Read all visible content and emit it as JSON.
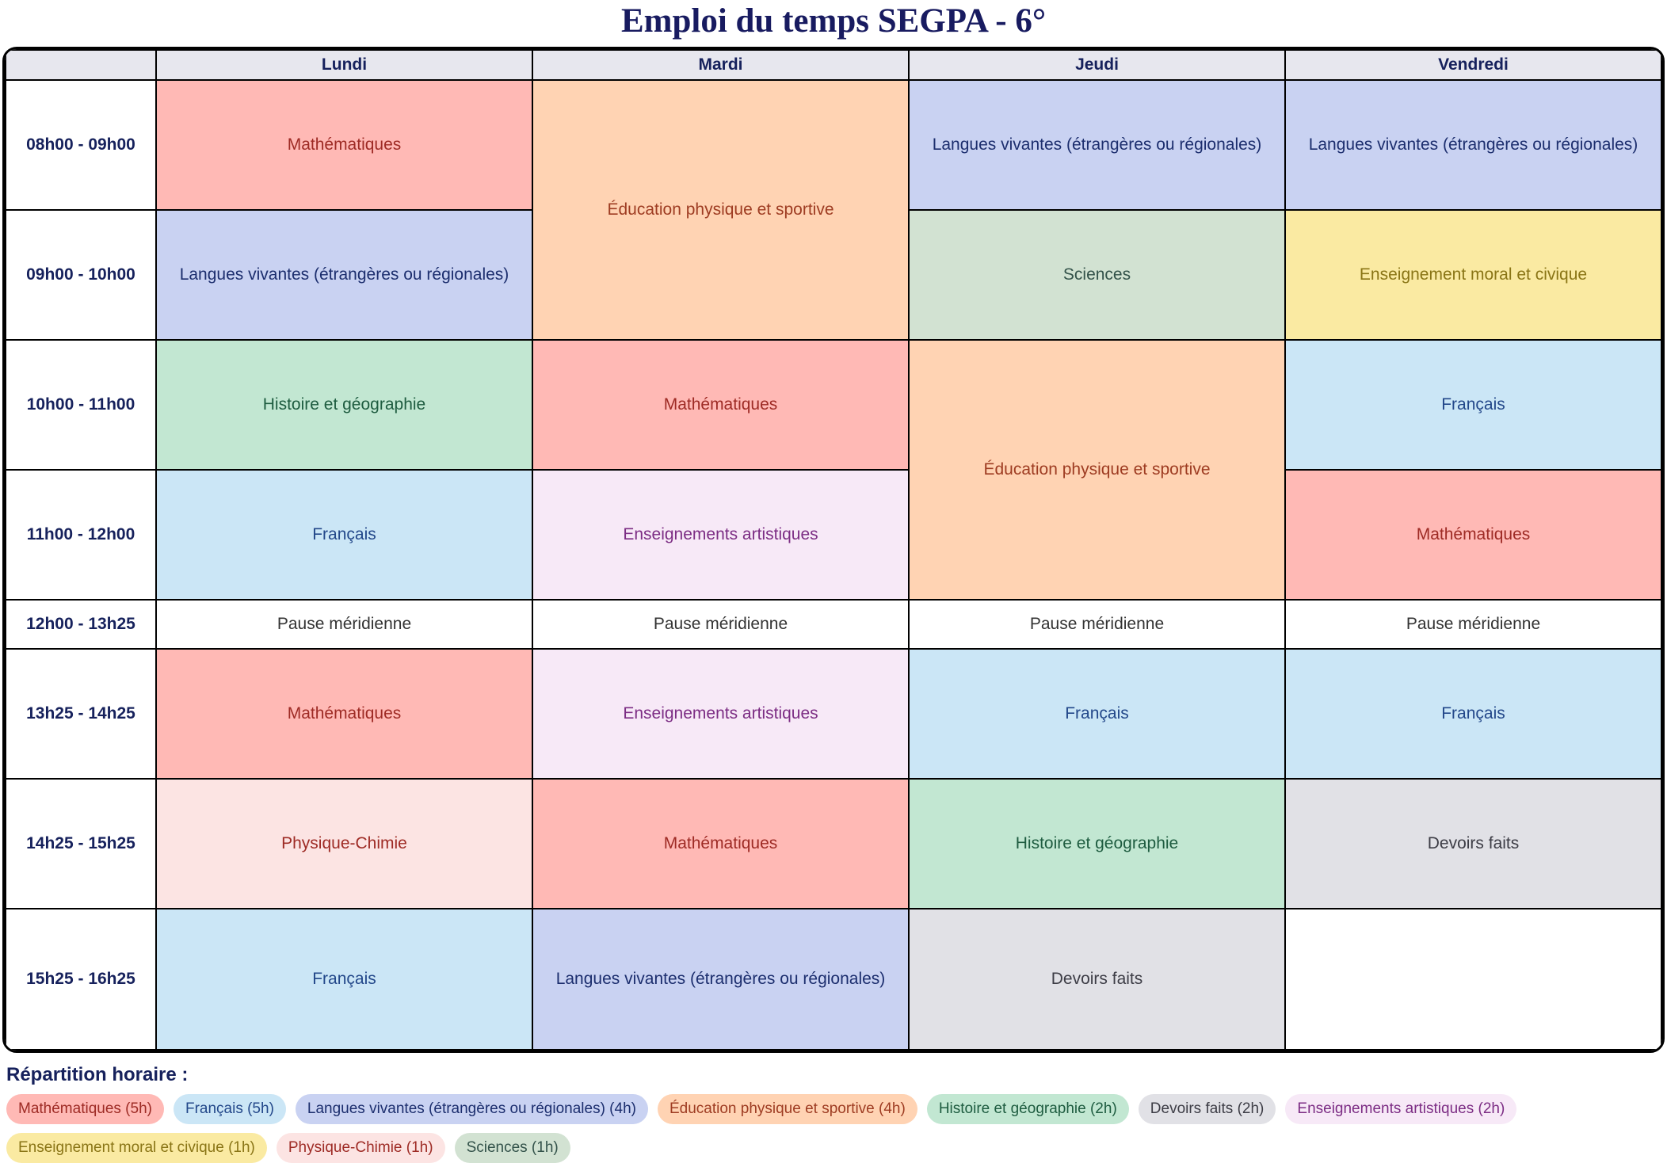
{
  "title": "Emploi du temps SEGPA - 6°",
  "days": [
    "Lundi",
    "Mardi",
    "Jeudi",
    "Vendredi"
  ],
  "colors": {
    "math": {
      "bg": "#ffb9b5",
      "text": "#9e2b25"
    },
    "francais": {
      "bg": "#cbe6f6",
      "text": "#23488a"
    },
    "langues": {
      "bg": "#c9d2f2",
      "text": "#1c2e6e"
    },
    "eps": {
      "bg": "#ffd3b3",
      "text": "#9e3c22"
    },
    "histoire": {
      "bg": "#c2e7d2",
      "text": "#1e5c40"
    },
    "sciences": {
      "bg": "#d2e2d2",
      "text": "#33524a"
    },
    "emc": {
      "bg": "#faeaa2",
      "text": "#8a7516"
    },
    "artistiques": {
      "bg": "#f7e9f7",
      "text": "#7c2d84"
    },
    "physique": {
      "bg": "#fce4e3",
      "text": "#9e2b25"
    },
    "devoirs": {
      "bg": "#e1e1e6",
      "text": "#3d3d46"
    },
    "pause": {
      "bg": "#ffffff",
      "text": "#333333"
    },
    "empty": {
      "bg": "#ffffff",
      "text": "#000000"
    }
  },
  "schedule": {
    "rows": [
      {
        "time": "08h00 - 09h00",
        "cells": [
          {
            "label": "Mathématiques",
            "subject": "math"
          },
          {
            "label": "Éducation physique et sportive",
            "subject": "eps"
          },
          {
            "label": "Langues vivantes (étrangères ou régionales)",
            "subject": "langues"
          },
          {
            "label": "Langues vivantes (étrangères ou régionales)",
            "subject": "langues"
          }
        ]
      },
      {
        "time": "09h00 - 10h00",
        "cells": [
          {
            "label": "Langues vivantes (étrangères ou régionales)",
            "subject": "langues"
          },
          {
            "label": "Sciences",
            "subject": "sciences"
          },
          {
            "label": "Enseignement moral et civique",
            "subject": "emc"
          }
        ]
      },
      {
        "time": "10h00 - 11h00",
        "cells": [
          {
            "label": "Histoire et géographie",
            "subject": "histoire"
          },
          {
            "label": "Mathématiques",
            "subject": "math"
          },
          {
            "label": "Éducation physique et sportive",
            "subject": "eps"
          },
          {
            "label": "Français",
            "subject": "francais"
          }
        ]
      },
      {
        "time": "11h00 - 12h00",
        "cells": [
          {
            "label": "Français",
            "subject": "francais"
          },
          {
            "label": "Enseignements artistiques",
            "subject": "artistiques"
          },
          {
            "label": "Mathématiques",
            "subject": "math"
          }
        ]
      },
      {
        "time": "12h00 - 13h25",
        "cells": [
          {
            "label": "Pause méridienne",
            "subject": "pause"
          },
          {
            "label": "Pause méridienne",
            "subject": "pause"
          },
          {
            "label": "Pause méridienne",
            "subject": "pause"
          },
          {
            "label": "Pause méridienne",
            "subject": "pause"
          }
        ]
      },
      {
        "time": "13h25 - 14h25",
        "cells": [
          {
            "label": "Mathématiques",
            "subject": "math"
          },
          {
            "label": "Enseignements artistiques",
            "subject": "artistiques"
          },
          {
            "label": "Français",
            "subject": "francais"
          },
          {
            "label": "Français",
            "subject": "francais"
          }
        ]
      },
      {
        "time": "14h25 - 15h25",
        "cells": [
          {
            "label": "Physique-Chimie",
            "subject": "physique"
          },
          {
            "label": "Mathématiques",
            "subject": "math"
          },
          {
            "label": "Histoire et géographie",
            "subject": "histoire"
          },
          {
            "label": "Devoirs faits",
            "subject": "devoirs"
          }
        ]
      },
      {
        "time": "15h25 - 16h25",
        "cells": [
          {
            "label": "Français",
            "subject": "francais"
          },
          {
            "label": "Langues vivantes (étrangères ou régionales)",
            "subject": "langues"
          },
          {
            "label": "Devoirs faits",
            "subject": "devoirs"
          },
          {
            "label": "",
            "subject": "empty"
          }
        ]
      }
    ]
  },
  "legend": {
    "heading": "Répartition horaire :",
    "items": [
      {
        "label": "Mathématiques (5h)",
        "subject": "math"
      },
      {
        "label": "Français (5h)",
        "subject": "francais"
      },
      {
        "label": "Langues vivantes (étrangères ou régionales) (4h)",
        "subject": "langues"
      },
      {
        "label": "Éducation physique et sportive (4h)",
        "subject": "eps"
      },
      {
        "label": "Histoire et géographie (2h)",
        "subject": "histoire"
      },
      {
        "label": "Devoirs faits (2h)",
        "subject": "devoirs"
      },
      {
        "label": "Enseignements artistiques (2h)",
        "subject": "artistiques"
      },
      {
        "label": "Enseignement moral et civique (1h)",
        "subject": "emc"
      },
      {
        "label": "Physique-Chimie (1h)",
        "subject": "physique"
      },
      {
        "label": "Sciences (1h)",
        "subject": "sciences"
      }
    ]
  }
}
